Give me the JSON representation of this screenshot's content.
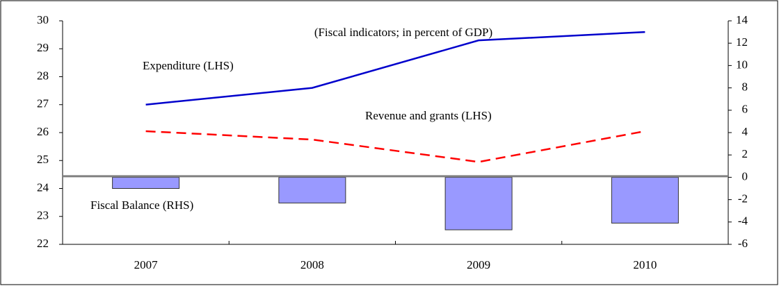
{
  "chart_data": {
    "type": "bar",
    "title": "(Fiscal indicators; in percent of GDP)",
    "categories": [
      "2007",
      "2008",
      "2009",
      "2010"
    ],
    "ylim": [
      22,
      30
    ],
    "yticks": [
      22,
      23,
      24,
      25,
      26,
      27,
      28,
      29,
      30
    ],
    "y2lim": [
      -6,
      14
    ],
    "y2ticks": [
      -6,
      -4,
      -2,
      0,
      2,
      4,
      6,
      8,
      10,
      12,
      14
    ],
    "series": [
      {
        "name": "Expenditure (LHS)",
        "type": "line",
        "color": "#0000cc",
        "values": [
          27.0,
          27.6,
          29.3,
          29.6
        ]
      },
      {
        "name": "Revenue and grants (LHS)",
        "type": "line",
        "dashed": true,
        "color": "#ff0000",
        "values": [
          26.05,
          25.75,
          24.95,
          26.05
        ]
      },
      {
        "name": "Fiscal Balance (RHS)",
        "type": "bar",
        "axis": "y2",
        "color": "#9999ff",
        "values": [
          -1.0,
          -2.3,
          -4.7,
          -4.1
        ]
      }
    ]
  }
}
